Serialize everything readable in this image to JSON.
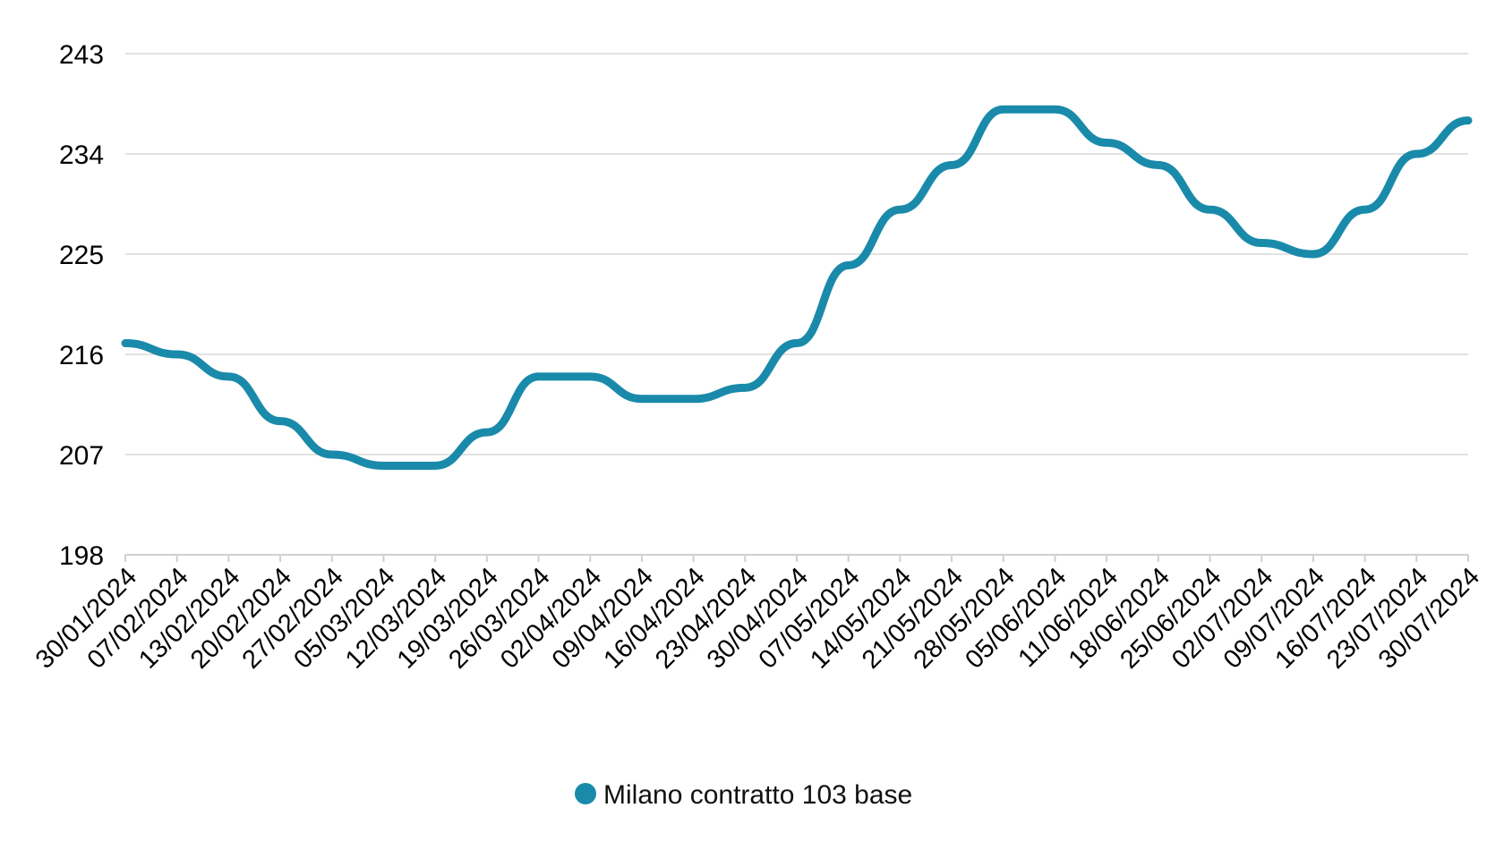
{
  "chart_data": {
    "type": "line",
    "title": "",
    "xlabel": "",
    "ylabel": "",
    "ylim": [
      198,
      243
    ],
    "yticks": [
      "243",
      "234",
      "225",
      "216",
      "207",
      "198"
    ],
    "grid": true,
    "legend_position": "bottom-center",
    "x": [
      "30/01/2024",
      "07/02/2024",
      "13/02/2024",
      "20/02/2024",
      "27/02/2024",
      "05/03/2024",
      "12/03/2024",
      "19/03/2024",
      "26/03/2024",
      "02/04/2024",
      "09/04/2024",
      "16/04/2024",
      "23/04/2024",
      "30/04/2024",
      "07/05/2024",
      "14/05/2024",
      "21/05/2024",
      "28/05/2024",
      "05/06/2024",
      "11/06/2024",
      "18/06/2024",
      "25/06/2024",
      "02/07/2024",
      "09/07/2024",
      "16/07/2024",
      "23/07/2024",
      "30/07/2024"
    ],
    "series": [
      {
        "name": "Milano contratto 103 base",
        "color": "#1a8aaa",
        "values": [
          217.0,
          216.0,
          214.0,
          210.0,
          207.0,
          206.0,
          206.0,
          209.0,
          214.0,
          214.0,
          212.0,
          212.0,
          213.0,
          217.0,
          224.0,
          229.0,
          233.0,
          238.0,
          238.0,
          235.0,
          233.0,
          229.0,
          226.0,
          225.0,
          229.0,
          234.0,
          237.0
        ]
      }
    ]
  }
}
